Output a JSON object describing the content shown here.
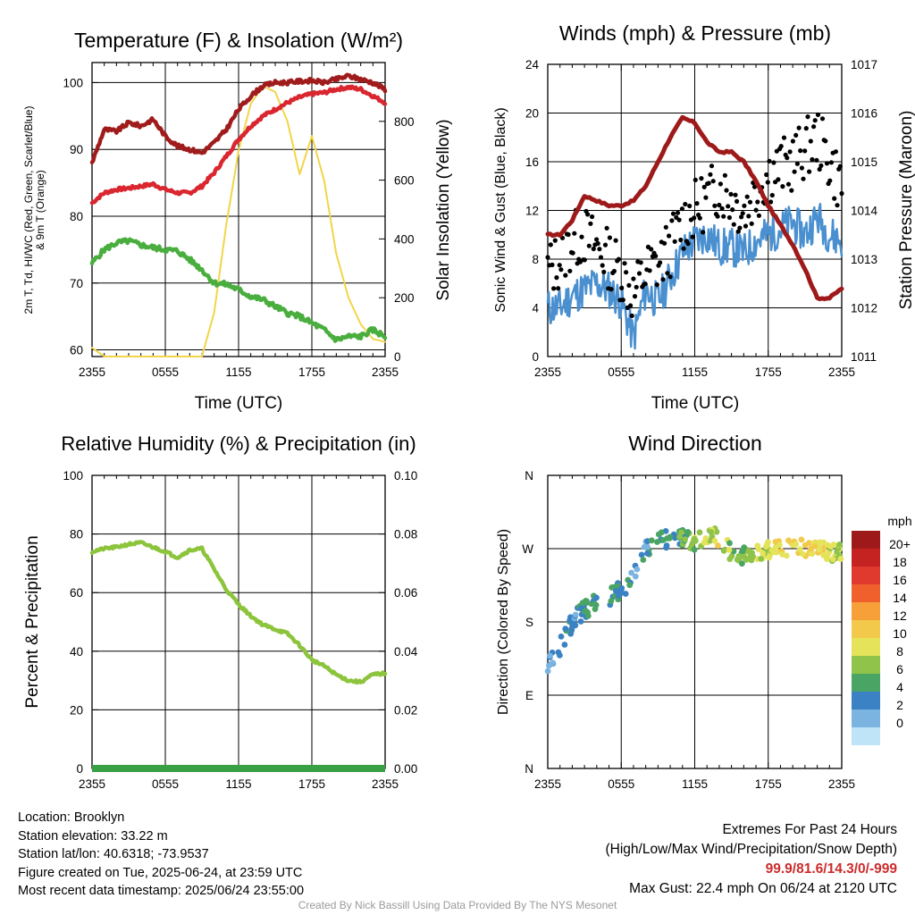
{
  "time_ticks": [
    "2355",
    "0555",
    "1155",
    "1755",
    "2355"
  ],
  "panels": {
    "temperature": {
      "title": "Temperature (F) & Insolation (W/m²)",
      "xlabel": "Time (UTC)",
      "ylabel_left_1": "2m T, Td, HI/WC (Red, Green, Scarlet/Blue)",
      "ylabel_left_2": "& 9m T (Orange)",
      "ylabel_right": "Solar Insolation (Yellow)"
    },
    "winds": {
      "title": "Winds (mph) & Pressure (mb)",
      "xlabel": "Time (UTC)",
      "ylabel_left": "Sonic Wind & Gust (Blue, Black)",
      "ylabel_right": "Station Pressure (Maroon)"
    },
    "humidity": {
      "title": "Relative Humidity (%) & Precipitation (in)",
      "ylabel_left": "Percent & Precipitation"
    },
    "direction": {
      "title": "Wind Direction",
      "ylabel_left": "Direction (Colored By Speed)",
      "colorbar_title": "mph",
      "colorbar_labels": [
        "20+",
        "18",
        "16",
        "14",
        "12",
        "10",
        "8",
        "6",
        "4",
        "2",
        "0"
      ],
      "colorbar_colors": [
        "#9e1a1a",
        "#c52222",
        "#e03a2e",
        "#f0602c",
        "#f7a03a",
        "#f2c94a",
        "#e5e35a",
        "#8fc34a",
        "#4aa564",
        "#3a82c4",
        "#7bb4e0",
        "#bfe3f7"
      ]
    }
  },
  "footer": {
    "location": "Location: Brooklyn",
    "elevation": "Station elevation: 33.22 m",
    "latlon": "Station lat/lon: 40.6318; -73.9537",
    "created": "Figure created on Tue, 2025-06-24, at 23:59 UTC",
    "recent": "Most recent data timestamp: 2025/06/24 23:55:00",
    "extremes_title": "Extremes For Past 24 Hours",
    "extremes_sub": "(High/Low/Max Wind/Precipitation/Snow Depth)",
    "extremes_values": "99.9/81.6/14.3/0/-999",
    "max_gust": "Max Gust: 22.4 mph On 06/24 at 2120 UTC",
    "credit": "Created By Nick Bassill Using Data Provided By The NYS Mesonet"
  },
  "chart_data": [
    {
      "type": "line",
      "title": "Temperature (F) & Insolation (W/m²)",
      "xlabel": "Time (UTC)",
      "ylabel": "2m T, Td, HI/WC (Red, Green, Scarlet/Blue) & 9m T (Orange)",
      "y2label": "Solar Insolation (Yellow)",
      "x_hours_since_2355": [
        0,
        1,
        2,
        3,
        4,
        5,
        6,
        7,
        8,
        9,
        10,
        11,
        12,
        13,
        14,
        15,
        16,
        17,
        18,
        19,
        20,
        21,
        22,
        23,
        24
      ],
      "ylim": [
        59,
        103
      ],
      "y2lim": [
        0,
        1000
      ],
      "series": [
        {
          "name": "HI/WC",
          "color": "#a01c1c",
          "axis": "left",
          "values": [
            88,
            93,
            92.7,
            94,
            93.5,
            94.5,
            92,
            90.5,
            90,
            89.5,
            91,
            93,
            96,
            98,
            99.5,
            100,
            100,
            100.2,
            100.3,
            100,
            100.5,
            101,
            100.5,
            100,
            99
          ]
        },
        {
          "name": "2m T",
          "color": "#d9262f",
          "axis": "left",
          "values": [
            82,
            83.5,
            84,
            84.2,
            84.5,
            84.8,
            84,
            83.5,
            83.5,
            84.5,
            86.5,
            89,
            91.5,
            93.5,
            95,
            96,
            97,
            97.8,
            98.3,
            98.5,
            99,
            99.3,
            99,
            98,
            97
          ]
        },
        {
          "name": "Td",
          "color": "#4aae3f",
          "axis": "left",
          "values": [
            73,
            75,
            76,
            76.3,
            75.7,
            75.3,
            75,
            74.8,
            73.5,
            72,
            70,
            69.8,
            69,
            68,
            67.5,
            66.5,
            65.5,
            65,
            64,
            63,
            61.5,
            62,
            62,
            63,
            62
          ]
        },
        {
          "name": "Solar Insolation",
          "color": "#f2d54a",
          "axis": "right",
          "values": [
            30,
            0,
            0,
            0,
            0,
            0,
            0,
            0,
            0,
            0,
            150,
            450,
            700,
            860,
            920,
            900,
            800,
            620,
            750,
            600,
            350,
            200,
            110,
            60,
            50
          ]
        }
      ]
    },
    {
      "type": "line",
      "title": "Winds (mph) & Pressure (mb)",
      "xlabel": "Time (UTC)",
      "ylabel": "Sonic Wind & Gust (Blue, Black)",
      "y2label": "Station Pressure (Maroon)",
      "x_hours_since_2355": [
        0,
        1,
        2,
        3,
        4,
        5,
        6,
        7,
        8,
        9,
        10,
        11,
        12,
        13,
        14,
        15,
        16,
        17,
        18,
        19,
        20,
        21,
        22,
        23,
        24
      ],
      "ylim": [
        0,
        24
      ],
      "y2lim": [
        1011,
        1017
      ],
      "series": [
        {
          "name": "Sonic Wind",
          "color": "#4a90d0",
          "axis": "left",
          "values": [
            4,
            4,
            5,
            5.5,
            6,
            5.5,
            4.5,
            1.5,
            5.5,
            4.5,
            6.5,
            8.5,
            9.5,
            10,
            9,
            9,
            8.5,
            9.5,
            10,
            10.5,
            11,
            10,
            11.5,
            10,
            9.5
          ]
        },
        {
          "name": "Gust",
          "color": "#000000",
          "axis": "left",
          "values": [
            7,
            8,
            9.5,
            10,
            9,
            8,
            7,
            5,
            7,
            7.5,
            9,
            11,
            12,
            13,
            14,
            13,
            12,
            13.5,
            15,
            15.5,
            16,
            17,
            18,
            16,
            14
          ]
        },
        {
          "name": "Station Pressure",
          "color": "#9e1a1a",
          "axis": "right",
          "values": [
            1013.5,
            1013.5,
            1013.8,
            1014.3,
            1014.2,
            1014.1,
            1014.1,
            1014.2,
            1014.5,
            1015,
            1015.5,
            1015.9,
            1015.8,
            1015.4,
            1015.2,
            1015.2,
            1015,
            1014.6,
            1014.1,
            1013.7,
            1013.3,
            1012.8,
            1012.2,
            1012.2,
            1012.4
          ]
        }
      ]
    },
    {
      "type": "line",
      "title": "Relative Humidity (%) & Precipitation (in)",
      "ylabel": "Percent & Precipitation",
      "x_hours_since_2355": [
        0,
        1,
        2,
        3,
        4,
        5,
        6,
        7,
        8,
        9,
        10,
        11,
        12,
        13,
        14,
        15,
        16,
        17,
        18,
        19,
        20,
        21,
        22,
        23,
        24
      ],
      "ylim": [
        0,
        100
      ],
      "y2lim": [
        0,
        0.1
      ],
      "series": [
        {
          "name": "Relative Humidity",
          "color": "#8cc43c",
          "axis": "left",
          "values": [
            74,
            75,
            75.5,
            76.5,
            77,
            75.5,
            74,
            72,
            74.5,
            75,
            68,
            61,
            56,
            52,
            49,
            47.5,
            46,
            42,
            37,
            35,
            32,
            30,
            29.5,
            32,
            32.5
          ]
        },
        {
          "name": "Precipitation",
          "color": "#3aa045",
          "axis": "right",
          "values": [
            0,
            0,
            0,
            0,
            0,
            0,
            0,
            0,
            0,
            0,
            0,
            0,
            0,
            0,
            0,
            0,
            0,
            0,
            0,
            0,
            0,
            0,
            0,
            0,
            0
          ]
        }
      ]
    },
    {
      "type": "scatter",
      "title": "Wind Direction",
      "ylabel": "Direction (Colored By Speed)",
      "yticks": [
        "N",
        "W",
        "S",
        "E",
        "N"
      ],
      "ylim_degrees_descending": [
        360,
        0
      ],
      "colorbar": {
        "title": "mph",
        "labels": [
          "20+",
          "18",
          "16",
          "14",
          "12",
          "10",
          "8",
          "6",
          "4",
          "2",
          "0"
        ]
      },
      "series": [
        {
          "name": "",
          "x_hours_since_2355": [
            0,
            1,
            2,
            3,
            4,
            5,
            6,
            7,
            8,
            9,
            10,
            11,
            12,
            13,
            14,
            15,
            16,
            17,
            18,
            19,
            20,
            21,
            22,
            23,
            24
          ],
          "direction_deg": [
            125,
            150,
            180,
            195,
            205,
            210,
            220,
            235,
            270,
            280,
            282,
            283,
            278,
            282,
            285,
            265,
            262,
            262,
            270,
            268,
            275,
            272,
            270,
            265,
            267
          ],
          "speed_mph": [
            3,
            3,
            4,
            5,
            5,
            4,
            5,
            3,
            4,
            5,
            5,
            6,
            8,
            9,
            10,
            7,
            8,
            10,
            9,
            11,
            12,
            11,
            12,
            10,
            9
          ]
        }
      ]
    }
  ]
}
